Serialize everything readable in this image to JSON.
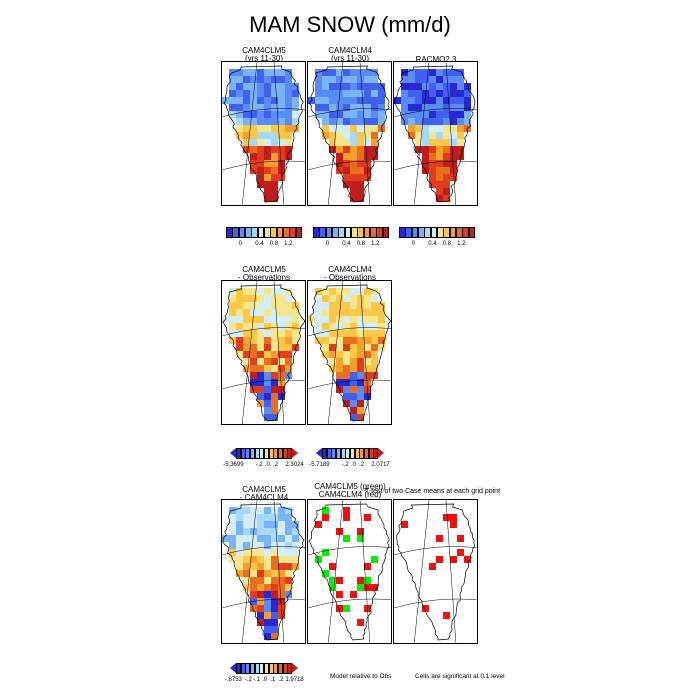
{
  "figure": {
    "title": "MAM SNOW (mm/d)",
    "ttest_title": "T-test of two Case means at each grid point",
    "note_model": "Model relative to Obs",
    "note_sig": "Cells are significant at 0.1 level"
  },
  "chart_data": [
    {
      "type": "heatmap",
      "id": "cam4clm5",
      "title": [
        "CAM4CLM5",
        "(yrs 11-30)"
      ],
      "colorbar": {
        "ticks": [
          "0",
          "0.4",
          "0.8",
          "1.2"
        ],
        "colors": [
          "#2828d2",
          "#4060f0",
          "#5a8af5",
          "#7ab4f8",
          "#a6d8fa",
          "#d2ecf8",
          "#f5e68c",
          "#fac846",
          "#f5a028",
          "#eb6e1e",
          "#e13c1e",
          "#be1e1e"
        ]
      }
    },
    {
      "type": "heatmap",
      "id": "cam4clm4",
      "title": [
        "CAM4CLM4",
        "(yrs 11-30)"
      ],
      "colorbar": {
        "ticks": [
          "0",
          "0.4",
          "0.8",
          "1.2"
        ],
        "colors": [
          "#2828d2",
          "#4060f0",
          "#5a8af5",
          "#7ab4f8",
          "#a6d8fa",
          "#d2ecf8",
          "#f5e68c",
          "#fac846",
          "#f5a028",
          "#eb6e1e",
          "#e13c1e",
          "#be1e1e"
        ]
      }
    },
    {
      "type": "heatmap",
      "id": "racmo",
      "title": [
        "RACMO2.3"
      ],
      "colorbar": {
        "ticks": [
          "0",
          "0.4",
          "0.8",
          "1.2"
        ],
        "colors": [
          "#2828d2",
          "#4060f0",
          "#5a8af5",
          "#7ab4f8",
          "#a6d8fa",
          "#d2ecf8",
          "#f5e68c",
          "#fac846",
          "#f5a028",
          "#eb6e1e",
          "#e13c1e",
          "#be1e1e"
        ]
      }
    },
    {
      "type": "heatmap",
      "id": "clm5-obs",
      "title": [
        "CAM4CLM5",
        "- Observations"
      ],
      "colorbar": {
        "ticks": [
          "-5.3699",
          "-.2",
          ".0",
          ".2",
          "2.3024"
        ],
        "colors": [
          "#2828d2",
          "#4060f0",
          "#5a8af5",
          "#7ab4f8",
          "#a6d8fa",
          "#d2ecf8",
          "#f5e68c",
          "#fac846",
          "#f5a028",
          "#eb6e1e",
          "#e13c1e",
          "#be1e1e"
        ]
      }
    },
    {
      "type": "heatmap",
      "id": "clm4-obs",
      "title": [
        "CAM4CLM4",
        "- Observations"
      ],
      "colorbar": {
        "ticks": [
          "-5.7189",
          "-.2",
          ".0",
          ".2",
          "2.0717"
        ],
        "colors": [
          "#2828d2",
          "#4060f0",
          "#5a8af5",
          "#7ab4f8",
          "#a6d8fa",
          "#d2ecf8",
          "#f5e68c",
          "#fac846",
          "#f5a028",
          "#eb6e1e",
          "#e13c1e",
          "#be1e1e"
        ]
      }
    },
    {
      "type": "heatmap",
      "id": "clm5-clm4",
      "title": [
        "CAM4CLM5",
        "- CAM4CLM4"
      ],
      "colorbar": {
        "ticks": [
          "-.8753",
          "-.2",
          "-.1",
          ".0",
          ".1",
          ".2",
          "1.9718"
        ],
        "colors": [
          "#2828d2",
          "#4060f0",
          "#5a8af5",
          "#7ab4f8",
          "#a6d8fa",
          "#d2ecf8",
          "#f5e68c",
          "#fac846",
          "#f5a028",
          "#eb6e1e",
          "#e13c1e",
          "#be1e1e"
        ]
      }
    },
    {
      "type": "heatmap",
      "id": "ttest-models",
      "title": [
        "CAM4CLM5 (green)",
        "CAM4CLM4 (red)"
      ],
      "legend": {
        "green": "#00ee00",
        "red": "#ee1111"
      }
    },
    {
      "type": "heatmap",
      "id": "ttest-obs",
      "title": [],
      "legend": {
        "red": "#ee1111"
      }
    }
  ]
}
